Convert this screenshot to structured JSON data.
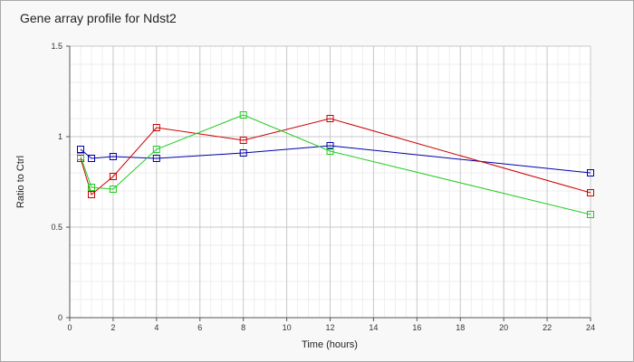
{
  "chart_data": {
    "type": "line",
    "title": "Gene array profile for Ndst2",
    "xlabel": "Time (hours)",
    "ylabel": "Ratio to Ctrl",
    "xlim": [
      0,
      24
    ],
    "ylim": [
      0,
      1.5
    ],
    "x_ticks": [
      0,
      2,
      4,
      6,
      8,
      10,
      12,
      14,
      16,
      18,
      20,
      22,
      24
    ],
    "y_ticks": [
      0,
      0.5,
      1,
      1.5
    ],
    "grid": true,
    "legend": "none",
    "series": [
      {
        "color": "#0000aa",
        "marker": "square",
        "x": [
          0.5,
          1,
          2,
          4,
          8,
          12,
          24
        ],
        "y": [
          0.93,
          0.88,
          0.89,
          0.88,
          0.91,
          0.95,
          0.8
        ]
      },
      {
        "color": "#cc0000",
        "marker": "square",
        "x": [
          0.5,
          1,
          2,
          4,
          8,
          12,
          24
        ],
        "y": [
          0.88,
          0.68,
          0.78,
          1.05,
          0.98,
          1.1,
          0.69
        ]
      },
      {
        "color": "#22cc22",
        "marker": "square",
        "x": [
          0.5,
          1,
          2,
          4,
          8,
          12,
          24
        ],
        "y": [
          0.89,
          0.72,
          0.71,
          0.93,
          1.12,
          0.92,
          0.57
        ]
      }
    ]
  }
}
